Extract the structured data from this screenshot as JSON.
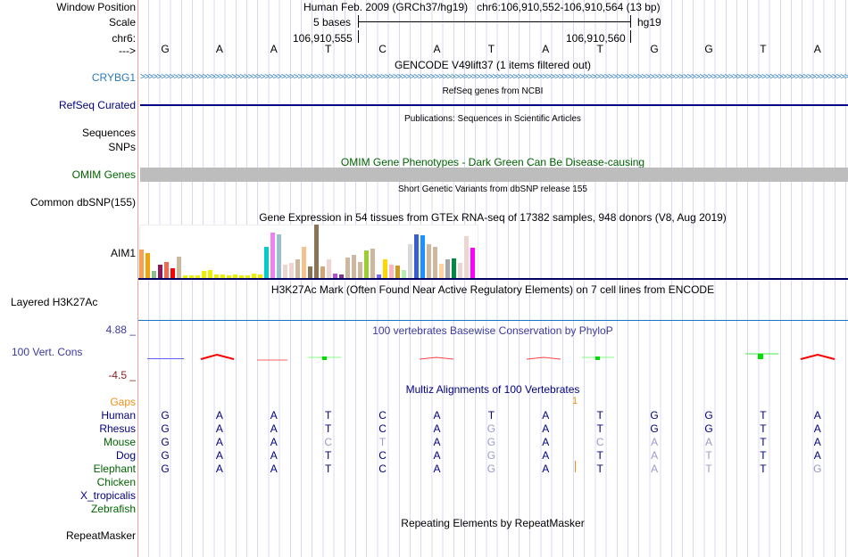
{
  "header": {
    "window_position_label": "Window Position",
    "scale_label": "Scale",
    "chrom_label": "chr6:",
    "strand_label": "--->",
    "position_text": "Human Feb. 2009 (GRCh37/hg19)   chr6:106,910,552-106,910,564 (13 bp)",
    "scale_text": "5 bases",
    "assembly": "hg19",
    "coord_left": "106,910,555",
    "coord_right": "106,910,560"
  },
  "bases": [
    "G",
    "A",
    "A",
    "T",
    "C",
    "A",
    "T",
    "A",
    "T",
    "G",
    "G",
    "T",
    "A"
  ],
  "tracks": {
    "gencode_title": "GENCODE V49lift37 (1 items filtered out)",
    "gencode_gene": "CRYBG1",
    "refseq_title": "RefSeq genes from NCBI",
    "refseq_label": "RefSeq Curated",
    "pubs_title": "Publications: Sequences in Scientific Articles",
    "pubs_label1": "Sequences",
    "pubs_label2": "SNPs",
    "omim_title": "OMIM Gene Phenotypes - Dark Green Can Be Disease-causing",
    "omim_label": "OMIM Genes",
    "dbsnp_title": "Short Genetic Variants from dbSNP release 155",
    "dbsnp_label": "Common dbSNP(155)",
    "gtex_title": "Gene Expression in 54 tissues from GTEx RNA-seq of 17382 samples, 948 donors (V8, Aug 2019)",
    "gtex_label": "AIM1",
    "h3k_title": "H3K27Ac Mark (Often Found Near Active Regulatory Elements) on 7 cell lines from ENCODE",
    "h3k_label": "Layered H3K27Ac",
    "phylop_title": "100 vertebrates Basewise Conservation by PhyloP",
    "phylop_label": "100 Vert. Cons",
    "phylop_max": "4.88 _",
    "phylop_min": "-4.5 _",
    "multiz_title": "Multiz Alignments of 100 Vertebrates",
    "gaps_label": "Gaps",
    "gap_count": "1",
    "rmsk_title": "Repeating Elements by RepeatMasker",
    "rmsk_label": "RepeatMasker"
  },
  "alignment": [
    {
      "species": "Human",
      "color": "#000080",
      "seq": "GAATCATATGGTA",
      "diff": "0000000000000"
    },
    {
      "species": "Rhesus",
      "color": "#000080",
      "seq": "GAATCAGATGGTA",
      "diff": "0000001000000"
    },
    {
      "species": "Mouse",
      "color": "#006400",
      "seq": "GAACTAGACAATA",
      "diff": "0001101011100"
    },
    {
      "species": "Dog",
      "color": "#000080",
      "seq": "GAATCAGATATTA",
      "diff": "0000001001100"
    },
    {
      "species": "Elephant",
      "color": "#006400",
      "seq": "GAATCAGATATTG",
      "diff": "0000001001101"
    },
    {
      "species": "Chicken",
      "color": "#006400",
      "seq": "",
      "diff": ""
    },
    {
      "species": "X_tropicalis",
      "color": "#000080",
      "seq": "",
      "diff": ""
    },
    {
      "species": "Zebrafish",
      "color": "#006400",
      "seq": "",
      "diff": ""
    }
  ],
  "gtex_values": [
    95,
    84,
    23,
    44,
    53,
    32,
    71,
    8,
    8,
    8,
    23,
    26,
    11,
    11,
    8,
    11,
    8,
    8,
    14,
    11,
    104,
    152,
    146,
    44,
    50,
    62,
    104,
    38,
    179,
    38,
    62,
    14,
    11,
    68,
    77,
    53,
    92,
    98,
    11,
    62,
    44,
    41,
    26,
    113,
    146,
    143,
    113,
    104,
    47,
    62,
    65,
    50,
    140,
    101
  ],
  "gtex_colors": [
    "#f79f56",
    "#f0a30a",
    "#8fbc8f",
    "#8b1a5a",
    "#ee6a50",
    "#ff0000",
    "#cdb79e",
    "#eeee00",
    "#eeee00",
    "#eeee00",
    "#eeee00",
    "#eeee00",
    "#eeee00",
    "#eeee00",
    "#eeee00",
    "#eeee00",
    "#eeee00",
    "#eeee00",
    "#eeee00",
    "#eeee00",
    "#00cdcd",
    "#ee82ee",
    "#9ac0cd",
    "#eed5d2",
    "#eed5d2",
    "#cdb79e",
    "#f4c28a",
    "#8b7355",
    "#8b7355",
    "#d2a679",
    "#eed5d2",
    "#b452cd",
    "#7a378b",
    "#cdb79e",
    "#cdb79e",
    "#cdb79e",
    "#9acd32",
    "#cdb79e",
    "#7b68ee",
    "#ffd700",
    "#ffb6c1",
    "#cd9b1d",
    "#b4eeb4",
    "#d9d9d9",
    "#3a5fcd",
    "#1e90ff",
    "#cdb79e",
    "#cdb79e",
    "#ffd39b",
    "#a6a6a6",
    "#008b45",
    "#eed5d2",
    "#eed5d2",
    "#ff00ff"
  ]
}
